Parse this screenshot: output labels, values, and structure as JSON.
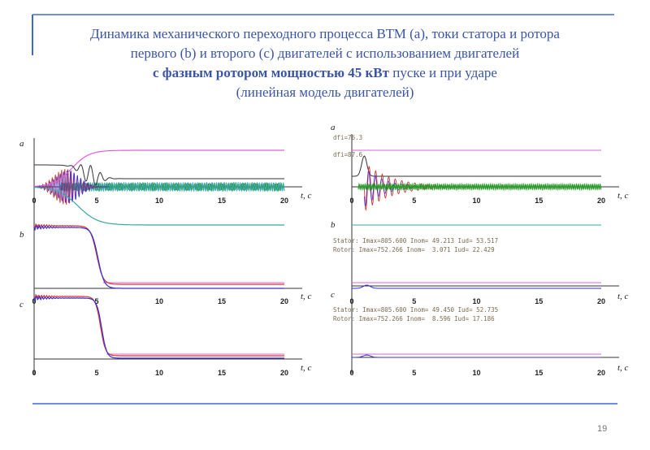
{
  "slide": {
    "title": [
      "Динамика механического переходного процесса ВТМ (а), токи статора и ротора",
      "первого (b) и второго (c) двигателей с использованием двигателей"
    ],
    "title_bold": "с фазным ротором мощностью 45 кВт",
    "title_end": " пуске и при ударе",
    "subtitle": "(линейная модель двигателей)",
    "page_number": "19"
  },
  "plots": {
    "x_ticks": [
      "0",
      "5",
      "10",
      "15",
      "20"
    ],
    "x_axis_label": "t, c",
    "panel_labels": [
      "a",
      "b",
      "c"
    ]
  },
  "annotations": {
    "dfi": [
      "dfi=76.3",
      "dfi=87.6"
    ],
    "b": [
      "Stator: Imax=805.600 Inom= 49.213 Iud= 53.517",
      "Rotor: Imax=752.266 Inom=  3.071 Iud= 22.429"
    ],
    "c": [
      "Stator: Imax=805.600 Inom= 49.450 Iud= 52.735",
      "Rotor: Imax=752.266 Inom=  8.596 Iud= 17.186"
    ]
  }
}
